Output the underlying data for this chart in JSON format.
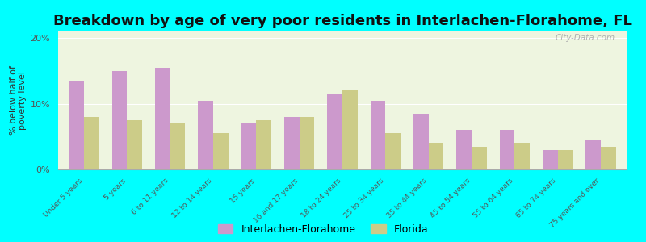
{
  "title": "Breakdown by age of very poor residents in Interlachen-Florahome, FL",
  "ylabel": "% below half of\npoverty level",
  "categories": [
    "Under 5 years",
    "5 years",
    "6 to 11 years",
    "12 to 14 years",
    "15 years",
    "16 and 17 years",
    "18 to 24 years",
    "25 to 34 years",
    "35 to 44 years",
    "45 to 54 years",
    "55 to 64 years",
    "65 to 74 years",
    "75 years and over"
  ],
  "interlachen_values": [
    13.5,
    15.0,
    15.5,
    10.5,
    7.0,
    8.0,
    11.5,
    10.5,
    8.5,
    6.0,
    6.0,
    3.0,
    4.5
  ],
  "florida_values": [
    8.0,
    7.5,
    7.0,
    5.5,
    7.5,
    8.0,
    12.0,
    5.5,
    4.0,
    3.5,
    4.0,
    3.0,
    3.5
  ],
  "interlachen_color": "#cc99cc",
  "florida_color": "#cccc88",
  "background_color": "#00ffff",
  "plot_bg_color": "#eef5e0",
  "ylim": [
    0,
    21
  ],
  "yticks": [
    0,
    10,
    20
  ],
  "ytick_labels": [
    "0%",
    "10%",
    "20%"
  ],
  "bar_width": 0.35,
  "legend_label_1": "Interlachen-Florahome",
  "legend_label_2": "Florida",
  "title_fontsize": 13,
  "axis_label_fontsize": 8
}
